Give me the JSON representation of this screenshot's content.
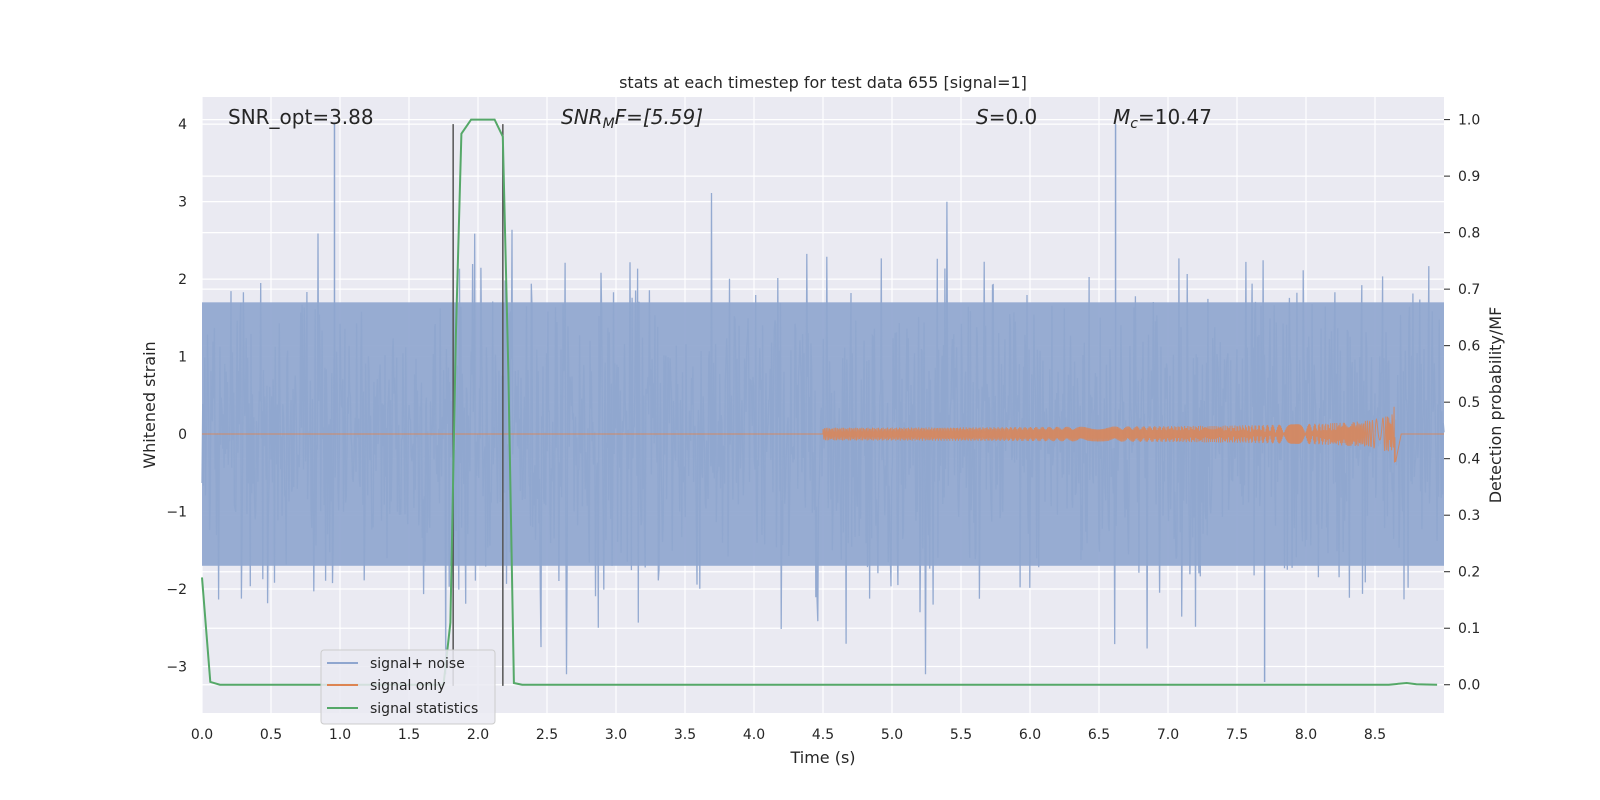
{
  "chart_data": {
    "type": "line",
    "title": "stats at each timestep for test data 655 [signal=1]",
    "xlabel": "Time (s)",
    "ylabel_left": "Whitened strain",
    "ylabel_right": "Detection probability/MF",
    "xlim": [
      0.0,
      9.0
    ],
    "ylim_left": [
      -3.6,
      4.35
    ],
    "ylim_right": [
      -0.05,
      1.04
    ],
    "xticks": [
      0.0,
      0.5,
      1.0,
      1.5,
      2.0,
      2.5,
      3.0,
      3.5,
      4.0,
      4.5,
      5.0,
      5.5,
      6.0,
      6.5,
      7.0,
      7.5,
      8.0,
      8.5
    ],
    "xtick_labels": [
      "0.0",
      "0.5",
      "1.0",
      "1.5",
      "2.0",
      "2.5",
      "3.0",
      "3.5",
      "4.0",
      "4.5",
      "5.0",
      "5.5",
      "6.0",
      "6.5",
      "7.0",
      "7.5",
      "8.0",
      "8.5"
    ],
    "yticks_left": [
      -3,
      -2,
      -1,
      0,
      1,
      2,
      3,
      4
    ],
    "ytick_labels_left": [
      "−3",
      "−2",
      "−1",
      "0",
      "1",
      "2",
      "3",
      "4"
    ],
    "yticks_right": [
      0.0,
      0.1,
      0.2,
      0.3,
      0.4,
      0.5,
      0.6,
      0.7,
      0.8,
      0.9,
      1.0
    ],
    "ytick_labels_right": [
      "0.0",
      "0.1",
      "0.2",
      "0.3",
      "0.4",
      "0.5",
      "0.6",
      "0.7",
      "0.8",
      "0.9",
      "1.0"
    ],
    "grid": true,
    "legend_position": "lower-left",
    "legend": [
      {
        "label": "signal+ noise",
        "color": "#8fa6cf"
      },
      {
        "label": "signal only",
        "color": "#dd8452"
      },
      {
        "label": "signal statistics",
        "color": "#55a868"
      }
    ],
    "annotations": {
      "snr_opt": "SNR_opt=3.88",
      "snr_mf_prefix": "SNR",
      "snr_mf_sub": "M",
      "snr_mf_suffix": "F=[5.59]",
      "s_var": "S",
      "s_val": "=0.0",
      "mc_var": "M",
      "mc_sub": "c",
      "mc_val": "=10.47"
    },
    "vertical_lines_x": [
      1.82,
      2.18
    ],
    "vertical_lines_range": [
      -3.25,
      4.0
    ],
    "noise_series": {
      "name": "signal+ noise",
      "samples": 1800,
      "x_range": [
        0.0,
        9.0
      ],
      "envelope": [
        -1.7,
        1.7
      ],
      "peak_y": [
        4.0,
        -3.2
      ]
    },
    "signal_only_series": {
      "name": "signal only",
      "chirp_start_x": 4.5,
      "merger_x": 8.65,
      "peak_amplitude": 0.5
    },
    "statistics_series": {
      "name": "signal statistics",
      "x": [
        0.0,
        0.06,
        0.13,
        0.3,
        1.0,
        1.5,
        1.75,
        1.8,
        1.84,
        1.88,
        1.95,
        2.05,
        2.12,
        2.18,
        2.22,
        2.26,
        2.32,
        3.0,
        4.0,
        5.0,
        6.0,
        7.0,
        8.0,
        8.6,
        8.73,
        8.8,
        8.95
      ],
      "y": [
        0.19,
        0.005,
        0.0,
        0.0,
        0.0,
        0.0,
        0.0,
        0.11,
        0.62,
        0.975,
        1.0,
        1.0,
        1.0,
        0.97,
        0.55,
        0.003,
        0.0,
        0.0,
        0.0,
        0.0,
        0.0,
        0.0,
        0.0,
        0.0,
        0.003,
        0.001,
        0.0
      ]
    },
    "colors": {
      "plot_bg": "#eaeaf2",
      "grid": "#ffffff",
      "noise": "#8fa6cf",
      "signal_only": "#dd8452",
      "statistics": "#55a868",
      "vline": "#555555"
    }
  }
}
